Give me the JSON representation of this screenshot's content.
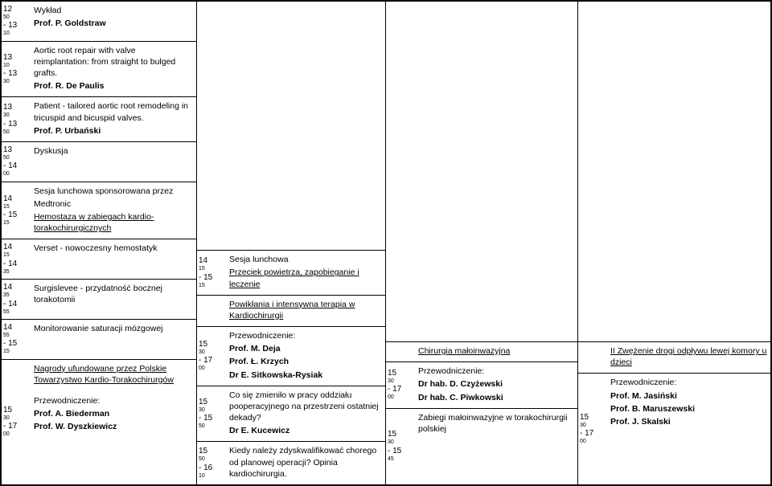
{
  "col1": {
    "r1": {
      "time": "12<sup>50</sup> - 13<sup>10</sup>",
      "title": "Wykład",
      "author": "Prof. P. Goldstraw"
    },
    "r2": {
      "time": "13<sup>10</sup> - 13<sup>30</sup>",
      "title": "Aortic root repair with valve reimplantation: from straight to bulged grafts.",
      "author": "Prof. R. De Paulis"
    },
    "r3": {
      "time": "13<sup>30</sup> - 13<sup>50</sup>",
      "title": "Patient - tailored aortic root remodeling in tricuspid and bicuspid valves.",
      "author": "Prof. P. Urbański"
    },
    "r4": {
      "time": "13<sup>50</sup> - 14<sup>00</sup>",
      "title": "Dyskusja"
    },
    "r5": {
      "time": "14<sup>15</sup> - 15<sup>15</sup>",
      "l1": "Sesja lunchowa sponsorowana przez",
      "l2": "Medtronic",
      "l3": "Hemostaza w zabiegach kardio-torakochirurgicznych"
    },
    "r6": {
      "time": "14<sup>15</sup> - 14<sup>35</sup>",
      "title": "Verset - nowoczesny hemostatyk"
    },
    "r7": {
      "time": "14<sup>35</sup> - 14<sup>55</sup>",
      "title": "Surgislevee - przydatność bocznej torakotomii"
    },
    "r8": {
      "time": "14<sup>55</sup> - 15<sup>15</sup>",
      "title": "Monitorowanie saturacji mózgowej"
    },
    "r9": {
      "time": "15<sup>30</sup> - 17<sup>00</sup>",
      "l1": "Nagrody ufundowane przez Polskie Towarzystwo Kardio-Torakochirurgów",
      "l2": "Przewodniczenie:",
      "l3": "Prof. A. Biederman",
      "l4": "Prof. W. Dyszkiewicz"
    }
  },
  "col2": {
    "r1": {
      "time": "14<sup>15</sup> - 15<sup>15</sup>",
      "l1": "Sesja lunchowa",
      "l2": "Przeciek powietrza, zapobieganie i leczenie"
    },
    "r2": {
      "l1": "Powikłania i intensywna terapia w Kardiochirurgii"
    },
    "r3": {
      "time": "15<sup>30</sup> - 17<sup>00</sup>",
      "l1": "Przewodniczenie:",
      "l2": "Prof. M. Deja",
      "l3": "Prof. Ł. Krzych",
      "l4": "Dr E. Sitkowska-Rysiak"
    },
    "r4": {
      "time": "15<sup>30</sup> - 15<sup>50</sup>",
      "l1": "Co się zmieniło w pracy oddziału pooperacyjnego na przestrzeni ostatniej dekady?",
      "l2": "Dr E. Kucewicz"
    },
    "r5": {
      "time": "15<sup>50</sup> - 16<sup>10</sup>",
      "l1": "Kiedy należy zdyskwalifikować chorego od planowej operacji? Opinia kardiochirurgia."
    }
  },
  "col3": {
    "r1": {
      "l1": "Chirurgia małoinwazyjna"
    },
    "r2": {
      "time": "15<sup>30</sup> - 17<sup>00</sup>",
      "l1": "Przewodniczenie:",
      "l2": "Dr hab. D. Czyżewski",
      "l3": "Dr hab. C. Piwkowski"
    },
    "r3": {
      "time": "15<sup>30</sup> - 15<sup>45</sup>",
      "l1": "Zabiegi małoinwazyjne w torakochirurgii polskiej"
    }
  },
  "col4": {
    "r1": {
      "l1": "II Zwężenie drogi odpływu lewej komory u dzieci"
    },
    "r2": {
      "time": "15<sup>30</sup> - 17<sup>00</sup>",
      "l1": "Przewodniczenie:",
      "l2": "Prof. M. Jasiński",
      "l3": "Prof. B. Maruszewski",
      "l4": "Prof. J. Skalski"
    }
  }
}
